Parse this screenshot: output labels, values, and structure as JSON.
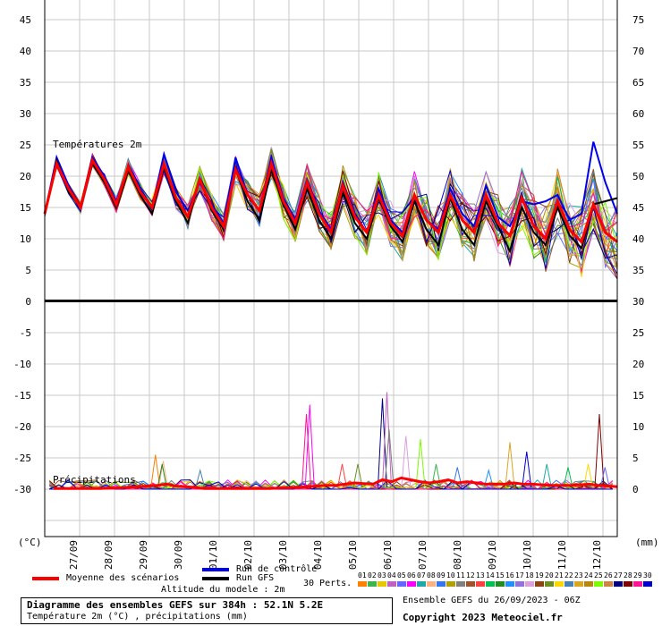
{
  "chart_data": {
    "type": "line",
    "title": "Diagramme des ensembles GEFS sur 384h : 52.1N 5.2E",
    "subtitle": "Température 2m (°C) , précipitations (mm)",
    "panels": [
      {
        "label": "Températures 2m",
        "left_ylim": [
          0,
          45
        ],
        "right_ylim": [
          30,
          75
        ]
      },
      {
        "label": "Précipitations",
        "left_ylim": [
          -30,
          0
        ],
        "right_ylim": [
          0,
          30
        ]
      }
    ],
    "left_ticks": [
      "45",
      "40",
      "35",
      "30",
      "25",
      "20",
      "15",
      "10",
      "5",
      "0",
      "-5",
      "-10",
      "-15",
      "-20",
      "-25",
      "-30"
    ],
    "right_ticks": [
      "75",
      "70",
      "65",
      "60",
      "55",
      "50",
      "45",
      "40",
      "35",
      "30",
      "25",
      "20",
      "15",
      "10",
      "5",
      "0"
    ],
    "left_unit": "(°C)",
    "right_unit": "(mm)",
    "x_ticks": [
      "27/09",
      "28/09",
      "29/09",
      "30/09",
      "01/10",
      "02/10",
      "03/10",
      "04/10",
      "05/10",
      "06/10",
      "07/10",
      "08/10",
      "09/10",
      "10/10",
      "11/10",
      "12/10"
    ],
    "series": [
      {
        "name": "Moyenne des scénarios",
        "color": "#ff0000",
        "temp": [
          14.0,
          22.0,
          18.0,
          15.0,
          22.5,
          19.5,
          15.5,
          21.5,
          17.5,
          15.0,
          22.0,
          16.5,
          13.5,
          19.5,
          15.0,
          12.0,
          21.0,
          17.0,
          14.5,
          22.0,
          16.0,
          12.5,
          19.0,
          14.0,
          11.0,
          18.5,
          13.5,
          11.0,
          17.0,
          12.5,
          10.5,
          17.0,
          13.0,
          11.0,
          17.0,
          13.0,
          11.0,
          17.0,
          12.5,
          10.5,
          16.5,
          12.0,
          10.0,
          16.0,
          11.5,
          9.5,
          15.5,
          11.0,
          9.5
        ],
        "precip": [
          0.1,
          0.1,
          0.1,
          0.1,
          0.1,
          0.1,
          0.2,
          0.2,
          0.3,
          0.4,
          0.5,
          0.6,
          0.8,
          0.5,
          0.4,
          0.3,
          0.1,
          0.1,
          0.1,
          0.1,
          0.1,
          0.1,
          0.1,
          0.1,
          0.2,
          0.2,
          0.3,
          0.4,
          0.5,
          0.6,
          0.6,
          0.8,
          1.0,
          0.9,
          0.8,
          1.5,
          1.2,
          1.8,
          1.5,
          1.2,
          1.0,
          1.2,
          1.5,
          1.0,
          1.2,
          1.0,
          0.8,
          0.8,
          0.8,
          1.0,
          0.8,
          0.8,
          0.7,
          0.6,
          0.6,
          0.6,
          0.7,
          0.8,
          0.6,
          0.5,
          0.4
        ]
      },
      {
        "name": "Run de contrôle",
        "color": "#0000ee",
        "temp": [
          14.0,
          23.0,
          18.5,
          15.0,
          23.0,
          20.0,
          16.0,
          21.5,
          18.0,
          15.0,
          23.5,
          17.5,
          14.5,
          19.0,
          15.5,
          12.5,
          23.0,
          17.0,
          14.5,
          23.0,
          16.5,
          13.0,
          19.5,
          14.5,
          11.5,
          19.0,
          14.0,
          11.0,
          18.0,
          13.0,
          11.0,
          17.0,
          13.0,
          11.5,
          18.0,
          14.0,
          12.0,
          18.5,
          13.5,
          12.0,
          16.0,
          15.5,
          16.0,
          17.0,
          13.0,
          14.0,
          25.5,
          19.0,
          14.0
        ]
      },
      {
        "name": "Run GFS",
        "color": "#000000",
        "temp": [
          14.0,
          22.5,
          17.5,
          15.0,
          22.0,
          19.0,
          15.0,
          21.0,
          17.0,
          14.0,
          21.5,
          16.0,
          12.5,
          19.5,
          14.5,
          11.5,
          21.0,
          16.0,
          13.0,
          21.0,
          15.5,
          11.5,
          18.0,
          13.0,
          10.0,
          17.5,
          12.5,
          10.0,
          16.5,
          12.0,
          9.5,
          16.0,
          11.5,
          9.0,
          16.5,
          11.5,
          9.0,
          16.0,
          12.0,
          8.0,
          15.0,
          11.0,
          9.0,
          15.0,
          10.5,
          8.5,
          15.5,
          16.0,
          16.5
        ]
      }
    ],
    "members": [
      "01",
      "02",
      "03",
      "04",
      "05",
      "06",
      "07",
      "08",
      "09",
      "10",
      "11",
      "12",
      "13",
      "14",
      "15",
      "16",
      "17",
      "18",
      "19",
      "20",
      "21",
      "22",
      "23",
      "24",
      "25",
      "26",
      "27",
      "28",
      "29",
      "30"
    ],
    "member_colors": [
      "#ff7f00",
      "#39b54a",
      "#e6c800",
      "#c060c0",
      "#6666ff",
      "#ff00ff",
      "#20a8a8",
      "#ffb080",
      "#3377ee",
      "#b0a000",
      "#808080",
      "#a0522d",
      "#ff4040",
      "#00c050",
      "#228b22",
      "#1e90ff",
      "#9370db",
      "#dda0dd",
      "#8b4513",
      "#6b8e23",
      "#ffd700",
      "#4682b4",
      "#daa520",
      "#b8860b",
      "#7cfc00",
      "#cd853f",
      "#000080",
      "#800000",
      "#ff1493",
      "#0000cd"
    ],
    "member_peaks": [
      {
        "x": 9.1,
        "y": 5.5
      },
      {
        "x": 9.8,
        "y": 4.5
      },
      {
        "x": 9.7,
        "y": 4.0
      },
      {
        "x": 13.1,
        "y": 3.0
      },
      {
        "x": 22.6,
        "y": 12.0
      },
      {
        "x": 22.9,
        "y": 13.5
      },
      {
        "x": 25.8,
        "y": 4.0
      },
      {
        "x": 27.2,
        "y": 4.0
      },
      {
        "x": 29.4,
        "y": 14.5
      },
      {
        "x": 29.8,
        "y": 15.5
      },
      {
        "x": 30.0,
        "y": 9.5
      },
      {
        "x": 31.5,
        "y": 8.5
      },
      {
        "x": 32.8,
        "y": 8.0
      },
      {
        "x": 34.2,
        "y": 4.0
      },
      {
        "x": 36.1,
        "y": 3.5
      },
      {
        "x": 38.9,
        "y": 3.0
      },
      {
        "x": 40.8,
        "y": 7.5
      },
      {
        "x": 42.3,
        "y": 6.0
      },
      {
        "x": 44.1,
        "y": 4.0
      },
      {
        "x": 46.0,
        "y": 3.5
      },
      {
        "x": 47.8,
        "y": 4.0
      },
      {
        "x": 48.8,
        "y": 12.0
      },
      {
        "x": 49.3,
        "y": 3.5
      }
    ],
    "legend": {
      "mean": "Moyenne des scénarios",
      "control": "Run de contrôle",
      "gfs": "Run GFS",
      "perts": "30 Perts."
    },
    "altitude": "Altitude du modele : 2m",
    "ensemble_run": "Ensemble GEFS du 26/09/2023 - 06Z",
    "copyright": "Copyright 2023 Meteociel.fr",
    "grid": true
  }
}
